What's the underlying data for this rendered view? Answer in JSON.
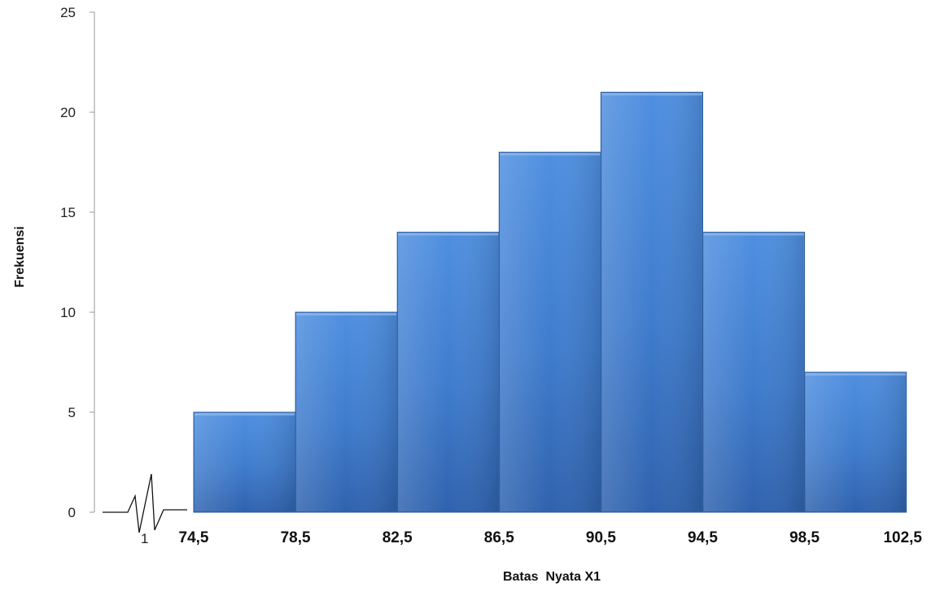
{
  "chart_data": {
    "type": "bar",
    "title": "",
    "xlabel": "Batas  Nyata X1",
    "ylabel": "Frekuensi",
    "ylim": [
      0,
      25
    ],
    "yticks": [
      0,
      5,
      10,
      15,
      20,
      25
    ],
    "bin_edges": [
      "74,5",
      "78,5",
      "82,5",
      "86,5",
      "90,5",
      "94,5",
      "98,5",
      "102,5"
    ],
    "values": [
      5,
      10,
      14,
      18,
      21,
      14,
      7
    ],
    "axis_break_label": "1",
    "grid": false,
    "legend": "none",
    "bar_color": "#4a86d4",
    "bar_edge_color": "#2d5a94"
  }
}
